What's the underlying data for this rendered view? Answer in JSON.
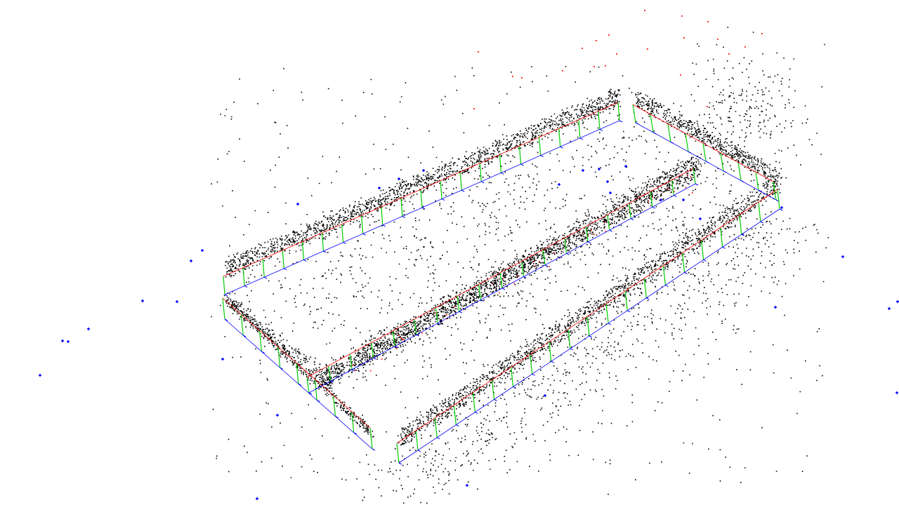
{
  "scene": {
    "background": "#ffffff",
    "colors": {
      "landmarks": "#000000",
      "outliers": "#ff0000",
      "camera_markers": "#0000ff",
      "trajectory_edge": "#ff0000",
      "camera_up_axis": "#00cc00",
      "camera_side_axis": "#0000ff"
    }
  }
}
